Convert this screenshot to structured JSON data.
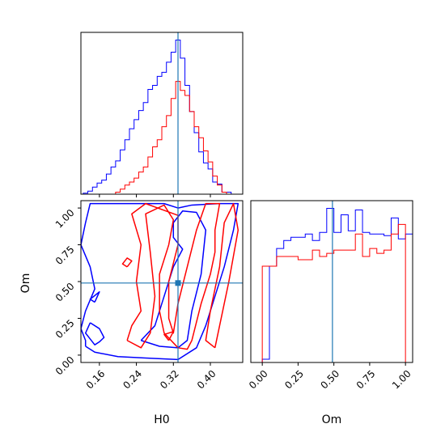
{
  "chart_data": [
    {
      "type": "histogram",
      "panel": "H0 marginal",
      "x_range": [
        0.12,
        0.47
      ],
      "truth": 0.33,
      "colors": {
        "blue_series": "#0000ff",
        "red_series": "#ff0000",
        "truth_line": "#1f77b4"
      },
      "series": [
        {
          "color": "blue",
          "bins": [
            0.13,
            0.14,
            0.15,
            0.16,
            0.17,
            0.18,
            0.19,
            0.2,
            0.21,
            0.22,
            0.23,
            0.24,
            0.25,
            0.26,
            0.27,
            0.28,
            0.29,
            0.3,
            0.31,
            0.32,
            0.33,
            0.34,
            0.35,
            0.36,
            0.37,
            0.38,
            0.39,
            0.4,
            0.41,
            0.42,
            0.43,
            0.44
          ],
          "counts": [
            1,
            3,
            7,
            11,
            14,
            20,
            27,
            33,
            44,
            54,
            65,
            74,
            83,
            91,
            104,
            108,
            117,
            121,
            131,
            141,
            153,
            135,
            108,
            82,
            61,
            42,
            31,
            25,
            12,
            10,
            2,
            2
          ]
        },
        {
          "color": "red",
          "bins": [
            0.2,
            0.21,
            0.22,
            0.23,
            0.24,
            0.25,
            0.26,
            0.27,
            0.28,
            0.29,
            0.3,
            0.31,
            0.32,
            0.33,
            0.34,
            0.35,
            0.36,
            0.37,
            0.38,
            0.39,
            0.4,
            0.41,
            0.42,
            0.43
          ],
          "counts": [
            2,
            5,
            9,
            12,
            16,
            22,
            27,
            37,
            47,
            54,
            67,
            78,
            95,
            112,
            103,
            98,
            82,
            67,
            56,
            43,
            32,
            18,
            9,
            2
          ]
        }
      ]
    },
    {
      "type": "contour",
      "panel": "H0 vs Om",
      "xlabel": "H0",
      "ylabel": "Om",
      "xlim": [
        0.12,
        0.47
      ],
      "ylim": [
        -0.05,
        1.05
      ],
      "xticks": [
        "0.16",
        "0.24",
        "0.32",
        "0.40"
      ],
      "yticks": [
        "0.00",
        "0.25",
        "0.50",
        "0.75",
        "1.00"
      ],
      "truth": {
        "H0": 0.33,
        "Om": 0.49
      },
      "series": [
        {
          "color": "blue",
          "contours": [
            [
              [
                0.13,
                0.06
              ],
              [
                0.15,
                0.02
              ],
              [
                0.2,
                -0.01
              ],
              [
                0.26,
                -0.02
              ],
              [
                0.33,
                -0.03
              ],
              [
                0.37,
                0.05
              ],
              [
                0.39,
                0.2
              ],
              [
                0.41,
                0.4
              ],
              [
                0.43,
                0.6
              ],
              [
                0.45,
                0.85
              ],
              [
                0.46,
                1.03
              ],
              [
                0.42,
                1.03
              ],
              [
                0.36,
                1.02
              ],
              [
                0.33,
                1.0
              ],
              [
                0.3,
                1.03
              ],
              [
                0.2,
                1.03
              ],
              [
                0.14,
                1.03
              ],
              [
                0.13,
                0.9
              ],
              [
                0.12,
                0.75
              ],
              [
                0.14,
                0.6
              ],
              [
                0.15,
                0.45
              ],
              [
                0.13,
                0.3
              ],
              [
                0.12,
                0.18
              ],
              [
                0.13,
                0.1
              ],
              [
                0.13,
                0.06
              ]
            ],
            [
              [
                0.25,
                0.1
              ],
              [
                0.29,
                0.06
              ],
              [
                0.33,
                0.05
              ],
              [
                0.35,
                0.1
              ],
              [
                0.36,
                0.3
              ],
              [
                0.38,
                0.55
              ],
              [
                0.39,
                0.85
              ],
              [
                0.37,
                0.97
              ],
              [
                0.34,
                0.98
              ],
              [
                0.32,
                0.9
              ],
              [
                0.32,
                0.8
              ],
              [
                0.34,
                0.72
              ],
              [
                0.32,
                0.6
              ],
              [
                0.3,
                0.4
              ],
              [
                0.28,
                0.2
              ],
              [
                0.25,
                0.1
              ]
            ],
            [
              [
                0.14,
                0.22
              ],
              [
                0.16,
                0.18
              ],
              [
                0.17,
                0.12
              ],
              [
                0.16,
                0.09
              ],
              [
                0.15,
                0.07
              ],
              [
                0.14,
                0.11
              ],
              [
                0.13,
                0.15
              ],
              [
                0.14,
                0.22
              ]
            ],
            [
              [
                0.15,
                0.36
              ],
              [
                0.16,
                0.43
              ],
              [
                0.14,
                0.38
              ],
              [
                0.15,
                0.36
              ]
            ]
          ]
        },
        {
          "color": "red",
          "contours": [
            [
              [
                0.22,
                0.1
              ],
              [
                0.25,
                0.05
              ],
              [
                0.27,
                0.15
              ],
              [
                0.28,
                0.4
              ],
              [
                0.27,
                0.7
              ],
              [
                0.26,
                0.96
              ],
              [
                0.3,
                1.02
              ],
              [
                0.32,
                0.92
              ],
              [
                0.31,
                0.75
              ],
              [
                0.29,
                0.55
              ],
              [
                0.29,
                0.3
              ],
              [
                0.3,
                0.15
              ],
              [
                0.33,
                0.05
              ],
              [
                0.35,
                0.04
              ],
              [
                0.36,
                0.1
              ],
              [
                0.38,
                0.35
              ],
              [
                0.4,
                0.55
              ],
              [
                0.41,
                0.7
              ],
              [
                0.41,
                0.85
              ],
              [
                0.42,
                1.03
              ],
              [
                0.39,
                1.03
              ],
              [
                0.37,
                0.85
              ],
              [
                0.35,
                0.6
              ],
              [
                0.33,
                0.35
              ],
              [
                0.32,
                0.15
              ],
              [
                0.31,
                0.25
              ],
              [
                0.31,
                0.5
              ],
              [
                0.33,
                0.75
              ],
              [
                0.33,
                0.95
              ],
              [
                0.26,
                1.03
              ],
              [
                0.23,
                0.96
              ],
              [
                0.25,
                0.75
              ],
              [
                0.24,
                0.5
              ],
              [
                0.25,
                0.3
              ],
              [
                0.23,
                0.2
              ],
              [
                0.22,
                0.1
              ]
            ],
            [
              [
                0.22,
                0.6
              ],
              [
                0.23,
                0.64
              ],
              [
                0.22,
                0.66
              ],
              [
                0.21,
                0.62
              ],
              [
                0.22,
                0.6
              ]
            ],
            [
              [
                0.31,
                0.1
              ],
              [
                0.32,
                0.16
              ],
              [
                0.3,
                0.14
              ],
              [
                0.31,
                0.1
              ]
            ],
            [
              [
                0.41,
                0.05
              ],
              [
                0.44,
                0.5
              ],
              [
                0.46,
                0.85
              ],
              [
                0.45,
                1.03
              ],
              [
                0.43,
                0.9
              ],
              [
                0.42,
                0.6
              ],
              [
                0.4,
                0.3
              ],
              [
                0.39,
                0.1
              ],
              [
                0.41,
                0.05
              ]
            ]
          ]
        }
      ]
    },
    {
      "type": "histogram",
      "panel": "Om marginal",
      "xlabel": "Om",
      "x_range": [
        -0.08,
        1.05
      ],
      "xticks": [
        "0.00",
        "0.25",
        "0.50",
        "0.75",
        "1.00"
      ],
      "truth": 0.49,
      "series": [
        {
          "color": "blue",
          "bins": [
            -0.025,
            0.025,
            0.075,
            0.125,
            0.175,
            0.225,
            0.275,
            0.325,
            0.375,
            0.425,
            0.475,
            0.525,
            0.575,
            0.625,
            0.675,
            0.725,
            0.775,
            0.825,
            0.875,
            0.925,
            0.975,
            1.025
          ],
          "counts": [
            0,
            2,
            60,
            71,
            76,
            78,
            78,
            80,
            76,
            81,
            96,
            81,
            92,
            82,
            95,
            81,
            80,
            80,
            79,
            90,
            77,
            80
          ]
        },
        {
          "color": "red",
          "bins": [
            -0.025,
            0.025,
            0.075,
            0.125,
            0.175,
            0.225,
            0.275,
            0.325,
            0.375,
            0.425,
            0.475,
            0.525,
            0.575,
            0.625,
            0.675,
            0.725,
            0.775,
            0.825,
            0.875,
            0.925,
            0.975,
            1.025
          ],
          "counts": [
            0,
            60,
            60,
            66,
            66,
            66,
            64,
            64,
            70,
            66,
            68,
            70,
            70,
            70,
            80,
            66,
            71,
            68,
            70,
            80,
            86,
            0
          ]
        }
      ]
    }
  ]
}
